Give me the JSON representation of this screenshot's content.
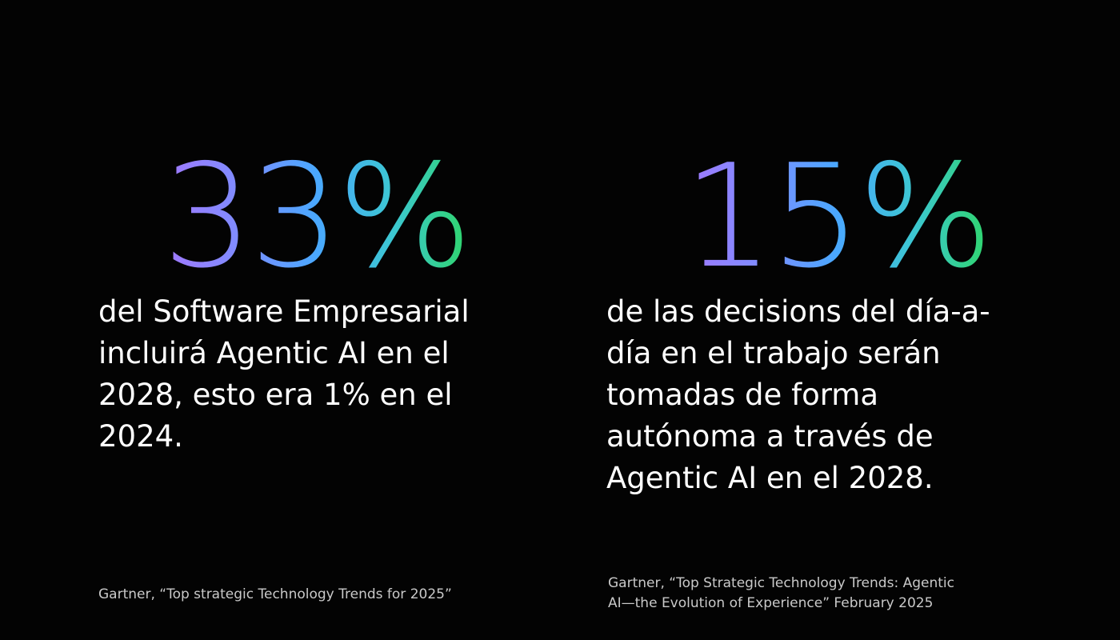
{
  "stats": [
    {
      "value": "33%",
      "lines": [
        "del Software Empresarial",
        "incluirá Agentic AI en el",
        "2028, esto era 1% en el",
        "2024."
      ],
      "source_lines": [
        "Gartner, “Top strategic Technology Trends for 2025”"
      ]
    },
    {
      "value": "15%",
      "lines": [
        "de las decisions del día-a-",
        "día en el trabajo serán",
        "tomadas de forma",
        "autónoma a través de",
        "Agentic AI en el 2028."
      ],
      "source_lines": [
        "Gartner, “Top Strategic Technology Trends: Agentic",
        "AI—the Evolution of Experience” February 2025"
      ]
    }
  ],
  "colors": {
    "background": "#030303",
    "gradient_start": "#a179ff",
    "gradient_mid": "#4aa8ff",
    "gradient_end": "#2fd66a",
    "text": "#ffffff",
    "source_text": "#c9c9c9"
  }
}
